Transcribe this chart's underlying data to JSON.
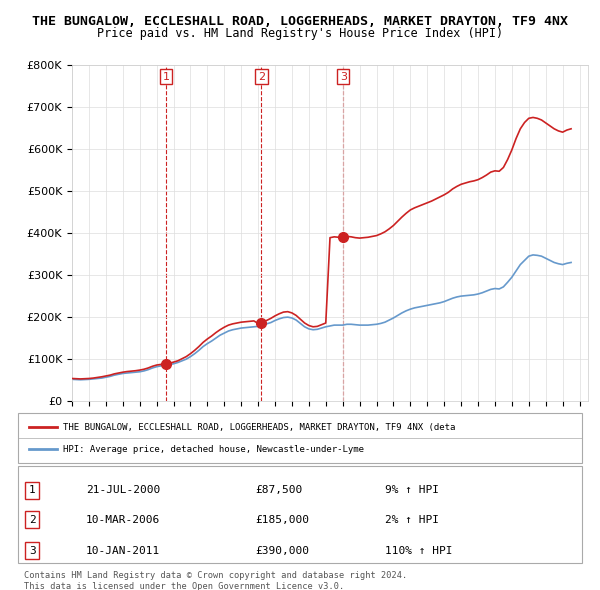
{
  "title": "THE BUNGALOW, ECCLESHALL ROAD, LOGGERHEADS, MARKET DRAYTON, TF9 4NX",
  "subtitle": "Price paid vs. HM Land Registry's House Price Index (HPI)",
  "title_fontsize": 10.5,
  "subtitle_fontsize": 9.5,
  "ylabel": "",
  "xlabel": "",
  "ylim": [
    0,
    800000
  ],
  "xlim_start": 1995.0,
  "xlim_end": 2025.5,
  "yticks": [
    0,
    100000,
    200000,
    300000,
    400000,
    500000,
    600000,
    700000,
    800000
  ],
  "ytick_labels": [
    "£0",
    "£100K",
    "£200K",
    "£300K",
    "£400K",
    "£500K",
    "£600K",
    "£700K",
    "£800K"
  ],
  "hpi_color": "#6699cc",
  "price_color": "#cc2222",
  "dashed_color": "#cc2222",
  "background_color": "#ffffff",
  "grid_color": "#dddddd",
  "sale_points": [
    {
      "date_num": 2000.55,
      "price": 87500,
      "label": "1"
    },
    {
      "date_num": 2006.19,
      "price": 185000,
      "label": "2"
    },
    {
      "date_num": 2011.03,
      "price": 390000,
      "label": "3"
    }
  ],
  "sale_table": [
    {
      "num": "1",
      "date": "21-JUL-2000",
      "price": "£87,500",
      "hpi": "9% ↑ HPI"
    },
    {
      "num": "2",
      "date": "10-MAR-2006",
      "price": "£185,000",
      "hpi": "2% ↑ HPI"
    },
    {
      "num": "3",
      "date": "10-JAN-2011",
      "price": "£390,000",
      "hpi": "110% ↑ HPI"
    }
  ],
  "legend_label_red": "THE BUNGALOW, ECCLESHALL ROAD, LOGGERHEADS, MARKET DRAYTON, TF9 4NX (deta",
  "legend_label_blue": "HPI: Average price, detached house, Newcastle-under-Lyme",
  "footnote": "Contains HM Land Registry data © Crown copyright and database right 2024.\nThis data is licensed under the Open Government Licence v3.0.",
  "hpi_data_x": [
    1995.0,
    1995.25,
    1995.5,
    1995.75,
    1996.0,
    1996.25,
    1996.5,
    1996.75,
    1997.0,
    1997.25,
    1997.5,
    1997.75,
    1998.0,
    1998.25,
    1998.5,
    1998.75,
    1999.0,
    1999.25,
    1999.5,
    1999.75,
    2000.0,
    2000.25,
    2000.5,
    2000.75,
    2001.0,
    2001.25,
    2001.5,
    2001.75,
    2002.0,
    2002.25,
    2002.5,
    2002.75,
    2003.0,
    2003.25,
    2003.5,
    2003.75,
    2004.0,
    2004.25,
    2004.5,
    2004.75,
    2005.0,
    2005.25,
    2005.5,
    2005.75,
    2006.0,
    2006.25,
    2006.5,
    2006.75,
    2007.0,
    2007.25,
    2007.5,
    2007.75,
    2008.0,
    2008.25,
    2008.5,
    2008.75,
    2009.0,
    2009.25,
    2009.5,
    2009.75,
    2010.0,
    2010.25,
    2010.5,
    2010.75,
    2011.0,
    2011.25,
    2011.5,
    2011.75,
    2012.0,
    2012.25,
    2012.5,
    2012.75,
    2013.0,
    2013.25,
    2013.5,
    2013.75,
    2014.0,
    2014.25,
    2014.5,
    2014.75,
    2015.0,
    2015.25,
    2015.5,
    2015.75,
    2016.0,
    2016.25,
    2016.5,
    2016.75,
    2017.0,
    2017.25,
    2017.5,
    2017.75,
    2018.0,
    2018.25,
    2018.5,
    2018.75,
    2019.0,
    2019.25,
    2019.5,
    2019.75,
    2020.0,
    2020.25,
    2020.5,
    2020.75,
    2021.0,
    2021.25,
    2021.5,
    2021.75,
    2022.0,
    2022.25,
    2022.5,
    2022.75,
    2023.0,
    2023.25,
    2023.5,
    2023.75,
    2024.0,
    2024.25,
    2024.5
  ],
  "hpi_data_y": [
    52000,
    51500,
    51000,
    51500,
    52000,
    53000,
    54000,
    55000,
    57000,
    59000,
    62000,
    64000,
    66000,
    67000,
    68000,
    69000,
    70000,
    72000,
    75000,
    79000,
    82000,
    84000,
    85000,
    87000,
    89000,
    92000,
    96000,
    100000,
    106000,
    113000,
    121000,
    130000,
    137000,
    143000,
    150000,
    157000,
    162000,
    167000,
    170000,
    172000,
    174000,
    175000,
    176000,
    177000,
    178000,
    181000,
    184000,
    187000,
    192000,
    196000,
    199000,
    200000,
    198000,
    193000,
    185000,
    177000,
    172000,
    170000,
    171000,
    174000,
    177000,
    179000,
    181000,
    181000,
    181000,
    183000,
    183000,
    182000,
    181000,
    181000,
    181000,
    182000,
    183000,
    185000,
    188000,
    193000,
    198000,
    204000,
    210000,
    215000,
    219000,
    222000,
    224000,
    226000,
    228000,
    230000,
    232000,
    234000,
    237000,
    241000,
    245000,
    248000,
    250000,
    251000,
    252000,
    253000,
    255000,
    258000,
    262000,
    266000,
    268000,
    267000,
    272000,
    283000,
    295000,
    310000,
    325000,
    335000,
    345000,
    348000,
    347000,
    345000,
    340000,
    335000,
    330000,
    327000,
    325000,
    328000,
    330000
  ],
  "price_data_x": [
    1995.0,
    1995.25,
    1995.5,
    1995.75,
    1996.0,
    1996.25,
    1996.5,
    1996.75,
    1997.0,
    1997.25,
    1997.5,
    1997.75,
    1998.0,
    1998.25,
    1998.5,
    1998.75,
    1999.0,
    1999.25,
    1999.5,
    1999.75,
    2000.0,
    2000.25,
    2000.5,
    2000.75,
    2001.0,
    2001.25,
    2001.5,
    2001.75,
    2002.0,
    2002.25,
    2002.5,
    2002.75,
    2003.0,
    2003.25,
    2003.5,
    2003.75,
    2004.0,
    2004.25,
    2004.5,
    2004.75,
    2005.0,
    2005.25,
    2005.5,
    2005.75,
    2006.0,
    2006.25,
    2006.5,
    2006.75,
    2007.0,
    2007.25,
    2007.5,
    2007.75,
    2008.0,
    2008.25,
    2008.5,
    2008.75,
    2009.0,
    2009.25,
    2009.5,
    2009.75,
    2010.0,
    2010.25,
    2010.5,
    2010.75,
    2011.0,
    2011.25,
    2011.5,
    2011.75,
    2012.0,
    2012.25,
    2012.5,
    2012.75,
    2013.0,
    2013.25,
    2013.5,
    2013.75,
    2014.0,
    2014.25,
    2014.5,
    2014.75,
    2015.0,
    2015.25,
    2015.5,
    2015.75,
    2016.0,
    2016.25,
    2016.5,
    2016.75,
    2017.0,
    2017.25,
    2017.5,
    2017.75,
    2018.0,
    2018.25,
    2018.5,
    2018.75,
    2019.0,
    2019.25,
    2019.5,
    2019.75,
    2020.0,
    2020.25,
    2020.5,
    2020.75,
    2021.0,
    2021.25,
    2021.5,
    2021.75,
    2022.0,
    2022.25,
    2022.5,
    2022.75,
    2023.0,
    2023.25,
    2023.5,
    2023.75,
    2024.0,
    2024.25,
    2024.5
  ],
  "price_data_y": [
    54000,
    53500,
    53000,
    53500,
    54000,
    55000,
    56500,
    58000,
    60000,
    62000,
    65000,
    67000,
    69000,
    70500,
    71500,
    72500,
    74000,
    76000,
    79000,
    83000,
    86000,
    87500,
    87500,
    90000,
    93000,
    96000,
    101000,
    106000,
    113000,
    121000,
    130000,
    140000,
    148000,
    155000,
    163000,
    170000,
    176000,
    181000,
    184000,
    186000,
    188000,
    189000,
    190000,
    191000,
    185000,
    188000,
    192000,
    197000,
    203000,
    208000,
    212000,
    213000,
    210000,
    204000,
    195000,
    186000,
    180000,
    177000,
    178000,
    182000,
    186000,
    389000,
    391000,
    390000,
    390000,
    392000,
    391000,
    389000,
    388000,
    389000,
    390000,
    392000,
    394000,
    398000,
    403000,
    410000,
    418000,
    428000,
    438000,
    447000,
    455000,
    460000,
    464000,
    468000,
    472000,
    476000,
    481000,
    486000,
    491000,
    497000,
    505000,
    511000,
    516000,
    519000,
    522000,
    524000,
    527000,
    532000,
    538000,
    545000,
    548000,
    547000,
    556000,
    575000,
    598000,
    625000,
    648000,
    663000,
    673000,
    675000,
    673000,
    669000,
    662000,
    655000,
    648000,
    643000,
    640000,
    645000,
    648000
  ]
}
